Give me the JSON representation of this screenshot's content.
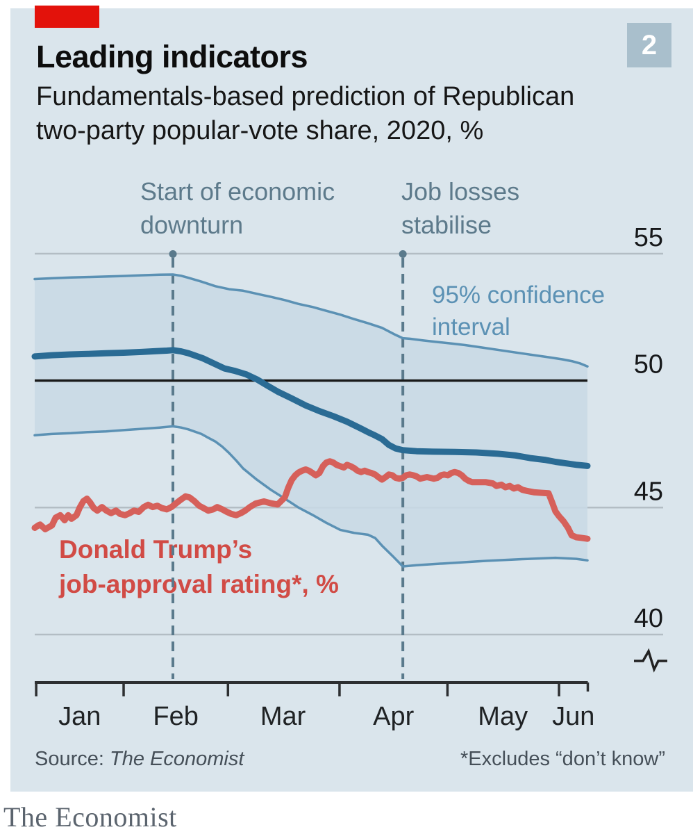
{
  "header": {
    "title": "Leading indicators",
    "subtitle_line1": "Fundamentals-based prediction of Republican",
    "subtitle_line2": "two-party popular-vote share, 2020, %",
    "badge": "2"
  },
  "footer": {
    "source_prefix": "Source: ",
    "source_name": "The Economist",
    "footnote": "*Excludes “don’t know”"
  },
  "brand": {
    "wordmark": "The Economist"
  },
  "colors": {
    "page_bg": "#ffffff",
    "panel_bg": "#dae5ec",
    "economist_red": "#e3120b",
    "badge_bg": "#a9bfcc",
    "band_fill": "#c8d9e5",
    "ci_line": "#5b91b4",
    "prediction_line": "#2a6b94",
    "approval_line": "#d6605a",
    "approval_label": "#d14b45",
    "annotation": "#5d7a8b",
    "dashed_line": "#5a7a8c",
    "gridline": "#b3bdc4",
    "baseline_50": "#1a1a1a",
    "axis": "#2d2f31",
    "tick_label": "#16181a"
  },
  "chart_data": {
    "type": "line",
    "title": "Fundamentals-based prediction of Republican two-party popular-vote share, 2020, %",
    "x_unit": "day of year 2020",
    "x_axis": {
      "start_doy": 7.3,
      "end_doy": 161,
      "major_tick_doys": [
        7.7,
        32,
        61,
        92,
        122,
        153
      ],
      "end_tick_doy": 161,
      "month_labels": [
        {
          "label": "Jan",
          "doy": 19.8
        },
        {
          "label": "Feb",
          "doy": 46.5
        },
        {
          "label": "Mar",
          "doy": 76.3
        },
        {
          "label": "Apr",
          "doy": 107
        },
        {
          "label": "May",
          "doy": 137.4
        },
        {
          "label": "Jun",
          "doy": 157
        }
      ]
    },
    "y_axis": {
      "ticks": [
        55,
        50,
        45,
        40
      ],
      "emphasized_value": 50,
      "axis_break": true,
      "range_shown": [
        40,
        55
      ]
    },
    "legend": {
      "ci_label_line1": "95% confidence",
      "ci_label_line2": "interval",
      "approval_label_line1": "Donald Trump’s",
      "approval_label_line2": "job-approval rating*, %"
    },
    "annotations": [
      {
        "line1": "Start of economic",
        "line2": "downturn",
        "doy": 45.7
      },
      {
        "line1": "Job losses",
        "line2": "stabilise",
        "doy": 109.6
      }
    ],
    "series": [
      {
        "name": "prediction",
        "label": "Republican two-party vote-share prediction",
        "color": "#2a6b94",
        "points": [
          [
            7.3,
            50.95
          ],
          [
            12,
            51.0
          ],
          [
            17,
            51.03
          ],
          [
            22,
            51.05
          ],
          [
            27,
            51.08
          ],
          [
            32,
            51.1
          ],
          [
            37,
            51.13
          ],
          [
            41,
            51.16
          ],
          [
            44,
            51.18
          ],
          [
            45.7,
            51.2
          ],
          [
            48,
            51.15
          ],
          [
            50,
            51.08
          ],
          [
            52,
            50.98
          ],
          [
            54,
            50.88
          ],
          [
            57,
            50.68
          ],
          [
            60,
            50.48
          ],
          [
            63,
            50.38
          ],
          [
            66,
            50.25
          ],
          [
            69,
            50.05
          ],
          [
            72,
            49.8
          ],
          [
            74.8,
            49.57
          ],
          [
            78.7,
            49.3
          ],
          [
            82.6,
            49.02
          ],
          [
            86.4,
            48.8
          ],
          [
            90.3,
            48.6
          ],
          [
            94.1,
            48.38
          ],
          [
            98,
            48.11
          ],
          [
            99.9,
            47.97
          ],
          [
            101.9,
            47.84
          ],
          [
            103.8,
            47.7
          ],
          [
            105.7,
            47.47
          ],
          [
            107.6,
            47.33
          ],
          [
            109.6,
            47.26
          ],
          [
            113.4,
            47.22
          ],
          [
            118,
            47.2
          ],
          [
            124,
            47.19
          ],
          [
            130,
            47.17
          ],
          [
            136,
            47.12
          ],
          [
            141,
            47.05
          ],
          [
            145,
            46.95
          ],
          [
            149,
            46.88
          ],
          [
            152,
            46.8
          ],
          [
            155.5,
            46.73
          ],
          [
            158,
            46.68
          ],
          [
            160.9,
            46.64
          ]
        ]
      },
      {
        "name": "ci_upper",
        "label": "95% confidence interval (upper)",
        "color": "#5b91b4",
        "points": [
          [
            7.3,
            54.0
          ],
          [
            12,
            54.03
          ],
          [
            17.4,
            54.06
          ],
          [
            22,
            54.08
          ],
          [
            27.1,
            54.1
          ],
          [
            32,
            54.12
          ],
          [
            36.9,
            54.15
          ],
          [
            42,
            54.17
          ],
          [
            45.7,
            54.18
          ],
          [
            48,
            54.13
          ],
          [
            50,
            54.05
          ],
          [
            53.6,
            53.9
          ],
          [
            57.5,
            53.72
          ],
          [
            61.3,
            53.6
          ],
          [
            65.2,
            53.54
          ],
          [
            69,
            53.42
          ],
          [
            72.9,
            53.3
          ],
          [
            76.8,
            53.17
          ],
          [
            80.6,
            53.02
          ],
          [
            84.5,
            52.9
          ],
          [
            88.3,
            52.75
          ],
          [
            92.2,
            52.6
          ],
          [
            96.1,
            52.42
          ],
          [
            99.9,
            52.26
          ],
          [
            103.8,
            52.08
          ],
          [
            105.7,
            51.94
          ],
          [
            107.6,
            51.8
          ],
          [
            109.6,
            51.67
          ],
          [
            111.5,
            51.65
          ],
          [
            115.3,
            51.58
          ],
          [
            119.2,
            51.52
          ],
          [
            123.1,
            51.46
          ],
          [
            126.9,
            51.4
          ],
          [
            132.7,
            51.28
          ],
          [
            138.5,
            51.16
          ],
          [
            144.3,
            51.04
          ],
          [
            150.1,
            50.92
          ],
          [
            153.9,
            50.84
          ],
          [
            156.8,
            50.76
          ],
          [
            158.8,
            50.68
          ],
          [
            160.9,
            50.56
          ]
        ]
      },
      {
        "name": "ci_lower",
        "label": "95% confidence interval (lower)",
        "color": "#5b91b4",
        "points": [
          [
            7.3,
            47.85
          ],
          [
            12,
            47.9
          ],
          [
            17.4,
            47.93
          ],
          [
            22,
            47.97
          ],
          [
            27.1,
            48.0
          ],
          [
            32,
            48.05
          ],
          [
            36.9,
            48.1
          ],
          [
            42,
            48.15
          ],
          [
            45.7,
            48.2
          ],
          [
            48,
            48.15
          ],
          [
            50,
            48.08
          ],
          [
            53.6,
            47.9
          ],
          [
            55.5,
            47.75
          ],
          [
            57.5,
            47.6
          ],
          [
            59.4,
            47.4
          ],
          [
            61.3,
            47.15
          ],
          [
            63.3,
            46.85
          ],
          [
            65.2,
            46.54
          ],
          [
            69,
            46.1
          ],
          [
            72.9,
            45.7
          ],
          [
            76.8,
            45.35
          ],
          [
            80.6,
            45.0
          ],
          [
            84.5,
            44.71
          ],
          [
            88.3,
            44.4
          ],
          [
            92.2,
            44.12
          ],
          [
            96.1,
            44.0
          ],
          [
            99.9,
            43.93
          ],
          [
            101.9,
            43.8
          ],
          [
            103.8,
            43.5
          ],
          [
            106.7,
            43.1
          ],
          [
            109.6,
            42.68
          ],
          [
            113.4,
            42.73
          ],
          [
            121.1,
            42.8
          ],
          [
            132.7,
            42.9
          ],
          [
            142.8,
            42.97
          ],
          [
            152,
            43.02
          ],
          [
            157.8,
            42.98
          ],
          [
            160.9,
            42.92
          ]
        ]
      },
      {
        "name": "approval",
        "label": "Donald Trump’s job-approval rating, %",
        "color": "#d6605a",
        "points": [
          [
            7.3,
            44.2
          ],
          [
            8.3,
            44.3
          ],
          [
            8.8,
            44.33
          ],
          [
            10.2,
            44.15
          ],
          [
            12.1,
            44.3
          ],
          [
            13.1,
            44.6
          ],
          [
            14.4,
            44.7
          ],
          [
            15.6,
            44.5
          ],
          [
            16.6,
            44.7
          ],
          [
            17.5,
            44.56
          ],
          [
            18.9,
            44.7
          ],
          [
            19.8,
            45.0
          ],
          [
            20.8,
            45.25
          ],
          [
            21.8,
            45.35
          ],
          [
            22.7,
            45.2
          ],
          [
            23.7,
            44.98
          ],
          [
            24.7,
            44.88
          ],
          [
            26,
            45.02
          ],
          [
            27.2,
            44.88
          ],
          [
            28.5,
            44.78
          ],
          [
            29.9,
            44.88
          ],
          [
            31,
            44.75
          ],
          [
            32.4,
            44.7
          ],
          [
            33.7,
            44.78
          ],
          [
            34.9,
            44.88
          ],
          [
            36.2,
            44.83
          ],
          [
            37.6,
            45.02
          ],
          [
            38.8,
            45.11
          ],
          [
            40.1,
            45.02
          ],
          [
            41.4,
            45.07
          ],
          [
            42.6,
            44.98
          ],
          [
            44,
            44.93
          ],
          [
            45.3,
            45.02
          ],
          [
            46.5,
            45.16
          ],
          [
            47.8,
            45.3
          ],
          [
            49.2,
            45.44
          ],
          [
            50.3,
            45.4
          ],
          [
            51.7,
            45.25
          ],
          [
            53,
            45.07
          ],
          [
            54.2,
            44.98
          ],
          [
            55.5,
            44.88
          ],
          [
            56.9,
            44.93
          ],
          [
            58,
            45.02
          ],
          [
            59.4,
            44.93
          ],
          [
            60.7,
            44.83
          ],
          [
            61.9,
            44.75
          ],
          [
            63.3,
            44.7
          ],
          [
            64.6,
            44.78
          ],
          [
            65.8,
            44.88
          ],
          [
            67.1,
            45.02
          ],
          [
            68.7,
            45.16
          ],
          [
            71,
            45.24
          ],
          [
            72.9,
            45.17
          ],
          [
            74.8,
            45.12
          ],
          [
            75.8,
            45.26
          ],
          [
            76.8,
            45.4
          ],
          [
            77.7,
            45.76
          ],
          [
            78.7,
            46.08
          ],
          [
            79.7,
            46.27
          ],
          [
            80.6,
            46.38
          ],
          [
            81.6,
            46.45
          ],
          [
            82.6,
            46.5
          ],
          [
            83.5,
            46.45
          ],
          [
            84.5,
            46.36
          ],
          [
            85.4,
            46.27
          ],
          [
            86.4,
            46.36
          ],
          [
            87.4,
            46.63
          ],
          [
            88.3,
            46.77
          ],
          [
            89.3,
            46.82
          ],
          [
            90.3,
            46.77
          ],
          [
            91.2,
            46.68
          ],
          [
            92.2,
            46.63
          ],
          [
            93.2,
            46.58
          ],
          [
            94.1,
            46.68
          ],
          [
            95.1,
            46.63
          ],
          [
            96.1,
            46.55
          ],
          [
            97,
            46.45
          ],
          [
            98,
            46.4
          ],
          [
            99,
            46.45
          ],
          [
            99.9,
            46.4
          ],
          [
            100.9,
            46.36
          ],
          [
            101.9,
            46.3
          ],
          [
            102.8,
            46.2
          ],
          [
            103.8,
            46.1
          ],
          [
            104.8,
            46.2
          ],
          [
            105.7,
            46.3
          ],
          [
            106.7,
            46.27
          ],
          [
            107.6,
            46.17
          ],
          [
            108.6,
            46.14
          ],
          [
            109.6,
            46.17
          ],
          [
            110.5,
            46.27
          ],
          [
            111.5,
            46.3
          ],
          [
            112.5,
            46.27
          ],
          [
            113.4,
            46.23
          ],
          [
            114.4,
            46.14
          ],
          [
            115.3,
            46.17
          ],
          [
            116.3,
            46.2
          ],
          [
            117.3,
            46.17
          ],
          [
            118.2,
            46.14
          ],
          [
            119.2,
            46.17
          ],
          [
            120.2,
            46.27
          ],
          [
            121.1,
            46.3
          ],
          [
            122.1,
            46.27
          ],
          [
            123.1,
            46.36
          ],
          [
            124,
            46.4
          ],
          [
            125,
            46.36
          ],
          [
            126,
            46.27
          ],
          [
            126.9,
            46.14
          ],
          [
            127.9,
            46.05
          ],
          [
            128.9,
            46.0
          ],
          [
            132.7,
            46.0
          ],
          [
            134.6,
            45.95
          ],
          [
            135.6,
            45.85
          ],
          [
            137,
            45.9
          ],
          [
            138.1,
            45.8
          ],
          [
            139.3,
            45.85
          ],
          [
            140.4,
            45.75
          ],
          [
            141.6,
            45.8
          ],
          [
            142.8,
            45.7
          ],
          [
            144.3,
            45.65
          ],
          [
            146.2,
            45.6
          ],
          [
            148.2,
            45.58
          ],
          [
            150.1,
            45.56
          ],
          [
            151.1,
            45.2
          ],
          [
            152,
            44.85
          ],
          [
            153,
            44.66
          ],
          [
            154.3,
            44.45
          ],
          [
            155.5,
            44.2
          ],
          [
            156.5,
            43.91
          ],
          [
            157.8,
            43.83
          ],
          [
            159.4,
            43.8
          ],
          [
            160.9,
            43.77
          ]
        ]
      }
    ],
    "band": {
      "fill": "#c8d9e5",
      "between": [
        "ci_upper",
        "ci_lower"
      ]
    }
  }
}
